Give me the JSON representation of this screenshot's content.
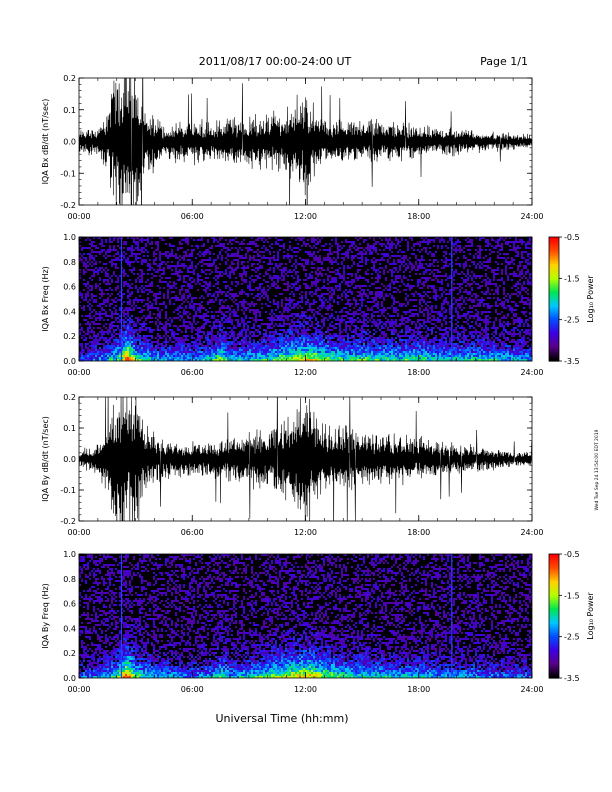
{
  "header": {
    "title": "2011/08/17  00:00-24:00 UT",
    "page": "Page 1/1"
  },
  "footer": {
    "xlabel": "Universal Time (hh:mm)"
  },
  "side_note": "Wed Tue Sep 24 13:54:00 EDT 2019",
  "colors": {
    "trace": "#000000",
    "background": "#ffffff",
    "colormap": [
      "#000000",
      "#5a008c",
      "#3c00e6",
      "#0050ff",
      "#00c8ff",
      "#00e650",
      "#b4ff00",
      "#ffd200",
      "#ff5000",
      "#ff0000"
    ]
  },
  "chart_data": [
    {
      "type": "line",
      "ylabel": "IQA Bx dB/dt (nT/sec)",
      "xlim": [
        0,
        24
      ],
      "ylim": [
        -0.2,
        0.2
      ],
      "xticks": [
        "00:00",
        "06:00",
        "12:00",
        "18:00",
        "24:00"
      ],
      "yticks": [
        "-0.2",
        "-0.1",
        "0.0",
        "0.1",
        "0.2"
      ],
      "envelope": {
        "x": [
          0,
          1,
          1.5,
          2,
          2.5,
          3,
          3.5,
          4,
          4.5,
          5,
          6,
          7,
          8,
          9,
          10,
          11,
          11.5,
          12,
          12.5,
          13,
          14,
          15,
          16,
          17,
          18,
          19,
          20,
          21,
          22,
          23,
          24
        ],
        "amplitude": [
          0.04,
          0.06,
          0.1,
          0.3,
          0.3,
          0.3,
          0.1,
          0.12,
          0.06,
          0.07,
          0.08,
          0.07,
          0.09,
          0.1,
          0.1,
          0.12,
          0.16,
          0.2,
          0.12,
          0.08,
          0.07,
          0.07,
          0.08,
          0.07,
          0.06,
          0.05,
          0.05,
          0.04,
          0.035,
          0.03,
          0.025
        ]
      }
    },
    {
      "type": "heatmap",
      "ylabel": "IQA Bx Freq (Hz)",
      "xlim": [
        0,
        24
      ],
      "ylim": [
        0,
        1.0
      ],
      "xticks": [
        "00:00",
        "06:00",
        "12:00",
        "18:00",
        "24:00"
      ],
      "yticks": [
        "0.0",
        "0.2",
        "0.4",
        "0.6",
        "0.8",
        "1.0"
      ],
      "colorbar": {
        "label": "Log₁₀ Power",
        "range": [
          -3.5,
          -0.5
        ],
        "ticks": [
          "-0.5",
          "-1.5",
          "-2.5",
          "-3.5"
        ]
      },
      "activity": {
        "x": [
          0,
          1,
          2,
          2.5,
          3,
          4,
          5,
          6,
          7,
          7.5,
          8,
          9,
          10,
          11,
          12,
          13,
          14,
          15,
          16,
          17,
          18,
          19,
          20,
          21,
          22,
          23,
          24
        ],
        "level": [
          0.3,
          0.35,
          0.6,
          1.0,
          0.6,
          0.45,
          0.4,
          0.4,
          0.5,
          0.7,
          0.45,
          0.5,
          0.55,
          0.7,
          0.8,
          0.65,
          0.55,
          0.6,
          0.55,
          0.55,
          0.6,
          0.5,
          0.5,
          0.5,
          0.5,
          0.45,
          0.4
        ]
      },
      "lines_hours": [
        2.25,
        19.75
      ]
    },
    {
      "type": "line",
      "ylabel": "IQA By dB/dt (nT/sec)",
      "xlim": [
        0,
        24
      ],
      "ylim": [
        -0.2,
        0.2
      ],
      "xticks": [
        "00:00",
        "06:00",
        "12:00",
        "18:00",
        "24:00"
      ],
      "yticks": [
        "-0.2",
        "-0.1",
        "0.0",
        "0.1",
        "0.2"
      ],
      "envelope": {
        "x": [
          0,
          1,
          1.5,
          2,
          2.5,
          3,
          3.5,
          4,
          4.5,
          5,
          6,
          7,
          8,
          9,
          10,
          11,
          11.5,
          12,
          12.5,
          13,
          14,
          15,
          16,
          17,
          18,
          19,
          20,
          21,
          22,
          23,
          24
        ],
        "amplitude": [
          0.03,
          0.06,
          0.12,
          0.3,
          0.3,
          0.3,
          0.14,
          0.1,
          0.07,
          0.07,
          0.06,
          0.07,
          0.08,
          0.1,
          0.12,
          0.16,
          0.2,
          0.3,
          0.2,
          0.14,
          0.12,
          0.1,
          0.1,
          0.09,
          0.08,
          0.07,
          0.06,
          0.05,
          0.04,
          0.03,
          0.03
        ]
      }
    },
    {
      "type": "heatmap",
      "ylabel": "IQA By Freq (Hz)",
      "xlim": [
        0,
        24
      ],
      "ylim": [
        0,
        1.0
      ],
      "xticks": [
        "00:00",
        "06:00",
        "12:00",
        "18:00",
        "24:00"
      ],
      "yticks": [
        "0.0",
        "0.2",
        "0.4",
        "0.6",
        "0.8",
        "1.0"
      ],
      "colorbar": {
        "label": "Log₁₀ Power",
        "range": [
          -3.5,
          -0.5
        ],
        "ticks": [
          "-0.5",
          "-1.5",
          "-2.5",
          "-3.5"
        ]
      },
      "activity": {
        "x": [
          0,
          1,
          2,
          2.5,
          3,
          4,
          5,
          6,
          7,
          7.5,
          8,
          9,
          10,
          11,
          12,
          13,
          14,
          15,
          16,
          17,
          18,
          19,
          20,
          21,
          22,
          23,
          24
        ],
        "level": [
          0.3,
          0.35,
          0.6,
          1.0,
          0.6,
          0.45,
          0.4,
          0.35,
          0.45,
          0.65,
          0.45,
          0.5,
          0.6,
          0.75,
          0.85,
          0.7,
          0.55,
          0.55,
          0.5,
          0.45,
          0.45,
          0.4,
          0.4,
          0.4,
          0.35,
          0.3,
          0.3
        ]
      },
      "lines_hours": [
        2.25,
        19.75
      ]
    }
  ]
}
